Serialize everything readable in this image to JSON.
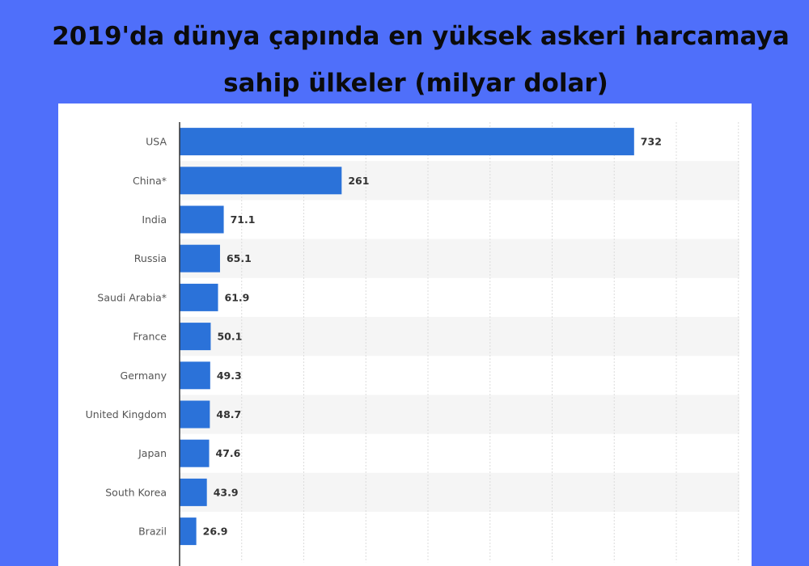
{
  "title": {
    "line1": "2019'da dünya çapında en yüksek askeri harcamaya",
    "line2": "sahip ülkeler (milyar dolar)"
  },
  "colors": {
    "background": "#4f6ffa",
    "bar": "#2b72d9",
    "stripe": "#f5f5f5"
  },
  "chart_data": {
    "type": "bar",
    "orientation": "horizontal",
    "title": "2019'da dünya çapında en yüksek askeri harcamaya sahip ülkeler (milyar dolar)",
    "categories": [
      "USA",
      "China*",
      "India",
      "Russia",
      "Saudi Arabia*",
      "France",
      "Germany",
      "United Kingdom",
      "Japan",
      "South Korea",
      "Brazil"
    ],
    "values": [
      732,
      261,
      71.1,
      65.1,
      61.9,
      50.1,
      49.3,
      48.7,
      47.6,
      43.9,
      26.9
    ],
    "value_labels": [
      "732",
      "261",
      "71.1",
      "65.1",
      "61.9",
      "50.1",
      "49.3",
      "48.7",
      "47.6",
      "43.9",
      "26.9"
    ],
    "xlim": [
      0,
      900
    ],
    "x_gridlines": [
      100,
      200,
      300,
      400,
      500,
      600,
      700,
      800,
      900
    ],
    "grid": true,
    "legend": "none"
  }
}
